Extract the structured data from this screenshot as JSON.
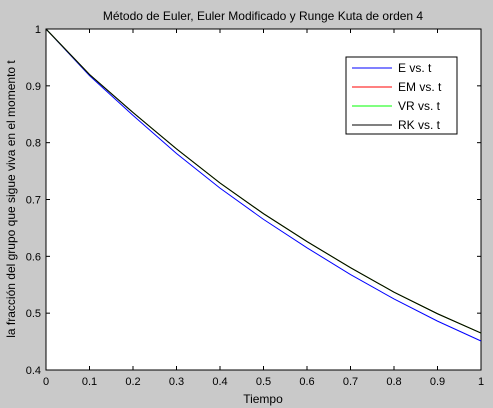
{
  "chart_data": {
    "type": "line",
    "title": "Método de Euler, Euler Modificado y Runge Kuta de orden 4",
    "xlabel": "Tiempo",
    "ylabel": "la fracción del grupo que sigue viva en el momento t",
    "xlim": [
      0,
      1
    ],
    "ylim": [
      0.4,
      1
    ],
    "xticks": [
      0,
      0.1,
      0.2,
      0.3,
      0.4,
      0.5,
      0.6,
      0.7,
      0.8,
      0.9,
      1
    ],
    "xtick_labels": [
      "0",
      "0.1",
      "0.2",
      "0.3",
      "0.4",
      "0.5",
      "0.6",
      "0.7",
      "0.8",
      "0.9",
      "1"
    ],
    "yticks": [
      0.4,
      0.5,
      0.6,
      0.7,
      0.8,
      0.9,
      1
    ],
    "ytick_labels": [
      "0.4",
      "0.5",
      "0.6",
      "0.7",
      "0.8",
      "0.9",
      "1"
    ],
    "grid": false,
    "legend_position": "top-right",
    "x": [
      0,
      0.1,
      0.2,
      0.3,
      0.4,
      0.5,
      0.6,
      0.7,
      0.8,
      0.9,
      1
    ],
    "series": [
      {
        "name": "E vs. t",
        "color": "#0000ff",
        "values": [
          1,
          0.918,
          0.848,
          0.781,
          0.72,
          0.665,
          0.615,
          0.568,
          0.525,
          0.486,
          0.451
        ]
      },
      {
        "name": "EM vs. t",
        "color": "#ff0000",
        "values": [
          1,
          0.92,
          0.853,
          0.789,
          0.729,
          0.675,
          0.626,
          0.58,
          0.537,
          0.499,
          0.465
        ]
      },
      {
        "name": "VR vs. t",
        "color": "#00ff00",
        "values": [
          1,
          0.92,
          0.853,
          0.789,
          0.729,
          0.675,
          0.626,
          0.58,
          0.537,
          0.499,
          0.465
        ]
      },
      {
        "name": "RK vs. t",
        "color": "#000000",
        "values": [
          1,
          0.92,
          0.853,
          0.789,
          0.729,
          0.675,
          0.626,
          0.58,
          0.537,
          0.499,
          0.465
        ]
      }
    ]
  }
}
